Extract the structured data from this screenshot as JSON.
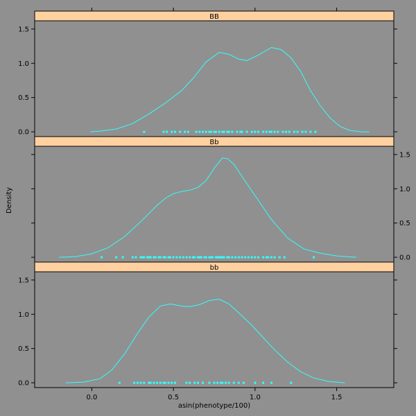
{
  "chart_data": {
    "type": "line",
    "chart_kind": "density (lattice densityplot, 3 panels stacked)",
    "xlabel": "asin(phenotype/100)",
    "ylabel": "Density",
    "xlim": [
      -0.35,
      1.85
    ],
    "ylim": [
      -0.07,
      1.62
    ],
    "x_ticks": [
      "0.0",
      "0.5",
      "1.0",
      "1.5"
    ],
    "y_ticks": [
      "0.0",
      "0.5",
      "1.0",
      "1.5"
    ],
    "line_color": "#33ffff",
    "background_color": "#909090",
    "strip_color": "#ffd0a0",
    "grid": false,
    "panels": [
      {
        "name": "BB",
        "y_axis_side": "left",
        "curve": [
          [
            -0.01,
            0.0
          ],
          [
            0.05,
            0.01
          ],
          [
            0.15,
            0.04
          ],
          [
            0.25,
            0.12
          ],
          [
            0.35,
            0.26
          ],
          [
            0.45,
            0.42
          ],
          [
            0.55,
            0.6
          ],
          [
            0.62,
            0.78
          ],
          [
            0.7,
            1.02
          ],
          [
            0.78,
            1.16
          ],
          [
            0.84,
            1.13
          ],
          [
            0.9,
            1.06
          ],
          [
            0.95,
            1.04
          ],
          [
            1.02,
            1.12
          ],
          [
            1.1,
            1.23
          ],
          [
            1.16,
            1.2
          ],
          [
            1.22,
            1.08
          ],
          [
            1.28,
            0.88
          ],
          [
            1.34,
            0.6
          ],
          [
            1.4,
            0.38
          ],
          [
            1.46,
            0.2
          ],
          [
            1.52,
            0.08
          ],
          [
            1.58,
            0.02
          ],
          [
            1.65,
            0.0
          ],
          [
            1.7,
            0.0
          ]
        ],
        "rug": [
          0.32,
          0.44,
          0.46,
          0.49,
          0.51,
          0.54,
          0.57,
          0.59,
          0.64,
          0.66,
          0.68,
          0.7,
          0.72,
          0.73,
          0.75,
          0.76,
          0.78,
          0.8,
          0.81,
          0.83,
          0.84,
          0.86,
          0.89,
          0.91,
          0.92,
          0.95,
          0.98,
          1.0,
          1.02,
          1.05,
          1.07,
          1.09,
          1.1,
          1.12,
          1.14,
          1.17,
          1.19,
          1.21,
          1.24,
          1.26,
          1.29,
          1.31,
          1.34,
          1.37
        ]
      },
      {
        "name": "Bb",
        "y_axis_side": "right",
        "curve": [
          [
            -0.2,
            0.0
          ],
          [
            -0.1,
            0.01
          ],
          [
            0.0,
            0.05
          ],
          [
            0.1,
            0.14
          ],
          [
            0.2,
            0.3
          ],
          [
            0.3,
            0.52
          ],
          [
            0.4,
            0.76
          ],
          [
            0.45,
            0.86
          ],
          [
            0.5,
            0.93
          ],
          [
            0.55,
            0.96
          ],
          [
            0.6,
            0.98
          ],
          [
            0.65,
            1.02
          ],
          [
            0.7,
            1.12
          ],
          [
            0.75,
            1.3
          ],
          [
            0.8,
            1.45
          ],
          [
            0.83,
            1.44
          ],
          [
            0.87,
            1.36
          ],
          [
            0.92,
            1.18
          ],
          [
            1.0,
            0.9
          ],
          [
            1.1,
            0.55
          ],
          [
            1.2,
            0.28
          ],
          [
            1.3,
            0.12
          ],
          [
            1.4,
            0.06
          ],
          [
            1.5,
            0.02
          ],
          [
            1.62,
            0.0
          ]
        ],
        "rug": [
          0.06,
          0.15,
          0.19,
          0.25,
          0.27,
          0.3,
          0.31,
          0.32,
          0.34,
          0.35,
          0.36,
          0.38,
          0.39,
          0.41,
          0.42,
          0.44,
          0.45,
          0.47,
          0.48,
          0.5,
          0.52,
          0.54,
          0.56,
          0.58,
          0.6,
          0.62,
          0.63,
          0.65,
          0.66,
          0.67,
          0.69,
          0.7,
          0.72,
          0.73,
          0.74,
          0.76,
          0.77,
          0.78,
          0.79,
          0.8,
          0.81,
          0.83,
          0.84,
          0.86,
          0.88,
          0.9,
          0.92,
          0.94,
          0.96,
          0.98,
          1.0,
          1.02,
          1.05,
          1.07,
          1.08,
          1.1,
          1.12,
          1.15,
          1.18,
          1.36
        ]
      },
      {
        "name": "bb",
        "y_axis_side": "left",
        "curve": [
          [
            -0.16,
            0.0
          ],
          [
            -0.05,
            0.01
          ],
          [
            0.05,
            0.06
          ],
          [
            0.12,
            0.18
          ],
          [
            0.2,
            0.42
          ],
          [
            0.28,
            0.72
          ],
          [
            0.35,
            0.96
          ],
          [
            0.42,
            1.12
          ],
          [
            0.48,
            1.15
          ],
          [
            0.55,
            1.12
          ],
          [
            0.6,
            1.11
          ],
          [
            0.66,
            1.14
          ],
          [
            0.72,
            1.2
          ],
          [
            0.78,
            1.22
          ],
          [
            0.84,
            1.15
          ],
          [
            0.9,
            1.02
          ],
          [
            0.98,
            0.84
          ],
          [
            1.05,
            0.66
          ],
          [
            1.12,
            0.48
          ],
          [
            1.2,
            0.3
          ],
          [
            1.28,
            0.16
          ],
          [
            1.36,
            0.07
          ],
          [
            1.45,
            0.02
          ],
          [
            1.55,
            0.0
          ]
        ],
        "rug": [
          0.17,
          0.26,
          0.28,
          0.3,
          0.32,
          0.35,
          0.36,
          0.38,
          0.4,
          0.42,
          0.44,
          0.45,
          0.47,
          0.49,
          0.51,
          0.58,
          0.6,
          0.63,
          0.65,
          0.68,
          0.72,
          0.75,
          0.77,
          0.79,
          0.8,
          0.82,
          0.84,
          0.87,
          0.9,
          0.93,
          1.0,
          1.05,
          1.1,
          1.22
        ]
      }
    ]
  }
}
